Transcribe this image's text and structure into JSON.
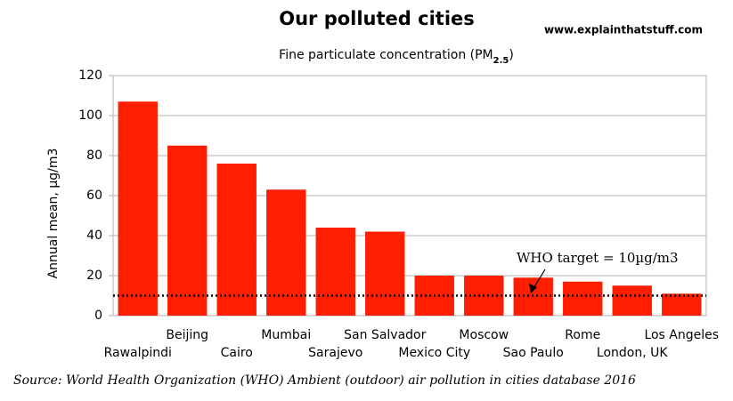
{
  "chart_data": {
    "type": "bar",
    "title": "Our polluted cities",
    "website": "www.explainthatstuff.com",
    "subtitle_parts": [
      "Fine particulate concentration (PM",
      "2.5",
      ")"
    ],
    "y_label": "Annual mean, µg/m3",
    "categories": [
      "Rawalpindi",
      "Beijing",
      "Cairo",
      "Mumbai",
      "Sarajevo",
      "San Salvador",
      "Mexico City",
      "Moscow",
      "Sao Paulo",
      "Rome",
      "London, UK",
      "Los Angeles"
    ],
    "values": [
      107,
      85,
      76,
      63,
      44,
      42,
      20,
      20,
      19,
      17,
      15,
      11
    ],
    "color": "#ff1f00",
    "ylim": [
      0,
      120
    ],
    "yticks": [
      0,
      20,
      40,
      60,
      80,
      100,
      120
    ],
    "grid": true,
    "reference_line": {
      "value": 10,
      "label": "WHO target = 10µg/m3"
    },
    "source": "Source: World Health Organization (WHO) Ambient (outdoor) air pollution in cities database 2016"
  }
}
